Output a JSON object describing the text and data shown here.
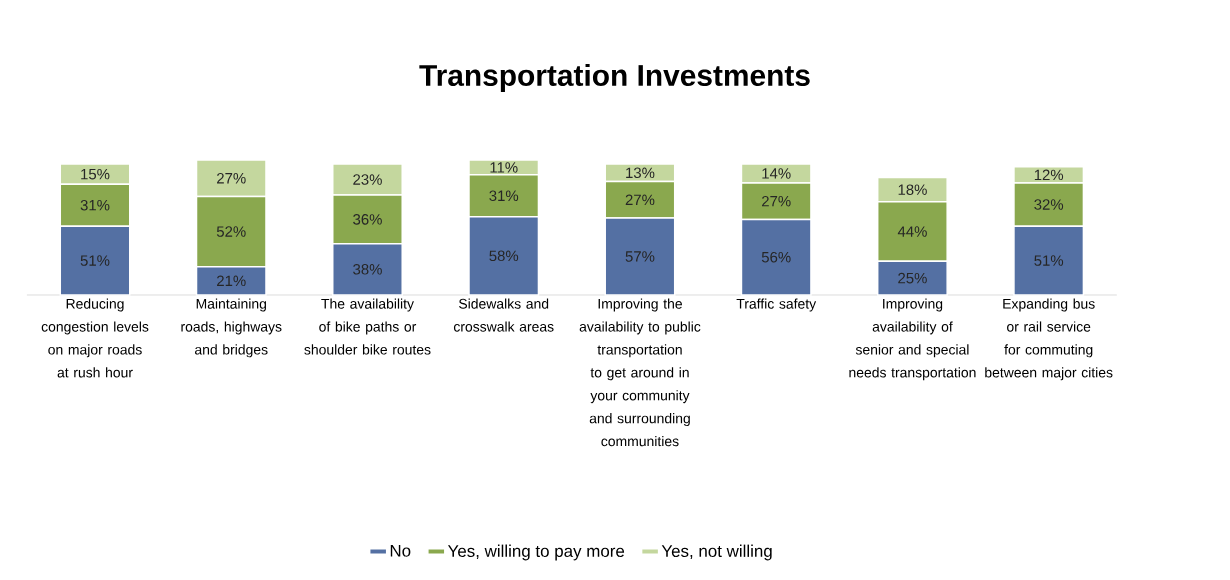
{
  "chart_data": {
    "type": "bar",
    "stacked": true,
    "title": "Transportation Investments",
    "categories": [
      "Reducing congestion levels on major roads at rush hour",
      "Maintaining roads, highways and bridges",
      "The availability of bike paths or shoulder bike routes",
      "Sidewalks and crosswalk areas",
      "Improving the availability to public transportation to get around in your community and surrounding communities",
      "Traffic safety",
      "Improving availability of senior and special needs transportation",
      "Expanding bus or rail service for commuting between major cities"
    ],
    "series": [
      {
        "name": "No",
        "color": "#5470a3",
        "values": [
          51,
          21,
          38,
          58,
          57,
          56,
          25,
          51
        ],
        "value_labels": [
          "51%",
          "21%",
          "38%",
          "58%",
          "57%",
          "56%",
          "25%",
          "51%"
        ]
      },
      {
        "name": "Yes, willing to pay more",
        "color": "#8aa84e",
        "values": [
          31,
          52,
          36,
          31,
          27,
          27,
          44,
          32
        ],
        "value_labels": [
          "31%",
          "52%",
          "36%",
          "31%",
          "27%",
          "27%",
          "44%",
          "32%"
        ]
      },
      {
        "name": "Yes, not willing",
        "color": "#c4d79e",
        "values": [
          15,
          27,
          23,
          11,
          13,
          14,
          18,
          12
        ],
        "value_labels": [
          "15%",
          "27%",
          "23%",
          "11%",
          "13%",
          "14%",
          "18%",
          "12%"
        ]
      }
    ],
    "legend": "bottom",
    "tick_labels": "x"
  }
}
